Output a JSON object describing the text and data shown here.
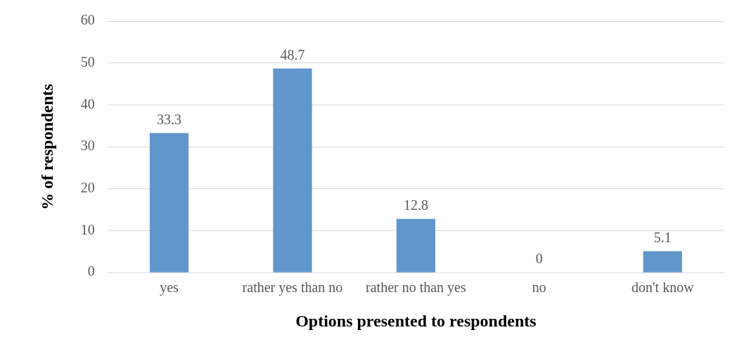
{
  "chart_data": {
    "type": "bar",
    "xlabel": "Options presented to respondents",
    "ylabel": "% of respondents",
    "categories": [
      "yes",
      "rather yes than no",
      "rather no than yes",
      "no",
      "don't know"
    ],
    "values": [
      33.3,
      48.7,
      12.8,
      0,
      5.1
    ],
    "color": "#6096cc",
    "ylim": [
      0,
      60
    ],
    "yticks": [
      0,
      10,
      20,
      30,
      40,
      50,
      60
    ],
    "grid": "y",
    "data_labels": true,
    "legend": false
  }
}
